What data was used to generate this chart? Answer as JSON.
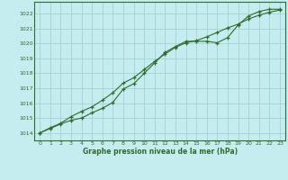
{
  "title": "Graphe pression niveau de la mer (hPa)",
  "background_color": "#c5ecee",
  "grid_color": "#9ecece",
  "line_color": "#2d6e2d",
  "xlim": [
    -0.5,
    23.5
  ],
  "ylim": [
    1013.5,
    1022.8
  ],
  "yticks": [
    1014,
    1015,
    1016,
    1017,
    1018,
    1019,
    1020,
    1021,
    1022
  ],
  "xticks": [
    0,
    1,
    2,
    3,
    4,
    5,
    6,
    7,
    8,
    9,
    10,
    11,
    12,
    13,
    14,
    15,
    16,
    17,
    18,
    19,
    20,
    21,
    22,
    23
  ],
  "series1_x": [
    0,
    1,
    2,
    3,
    4,
    5,
    6,
    7,
    8,
    9,
    10,
    11,
    12,
    13,
    14,
    15,
    16,
    17,
    18,
    19,
    20,
    21,
    22,
    23
  ],
  "series1_y": [
    1014.0,
    1014.3,
    1014.6,
    1014.85,
    1015.0,
    1015.35,
    1015.65,
    1016.05,
    1016.95,
    1017.3,
    1018.0,
    1018.7,
    1019.4,
    1019.8,
    1020.15,
    1020.15,
    1020.15,
    1020.05,
    1020.4,
    1021.25,
    1021.85,
    1022.15,
    1022.3,
    1022.3
  ],
  "series2_x": [
    0,
    1,
    2,
    3,
    4,
    5,
    6,
    7,
    8,
    9,
    10,
    11,
    12,
    13,
    14,
    15,
    16,
    17,
    18,
    19,
    20,
    21,
    22,
    23
  ],
  "series2_y": [
    1014.0,
    1014.35,
    1014.65,
    1015.1,
    1015.45,
    1015.75,
    1016.2,
    1016.7,
    1017.35,
    1017.7,
    1018.25,
    1018.8,
    1019.3,
    1019.75,
    1020.05,
    1020.2,
    1020.45,
    1020.75,
    1021.05,
    1021.3,
    1021.65,
    1021.9,
    1022.1,
    1022.25
  ]
}
